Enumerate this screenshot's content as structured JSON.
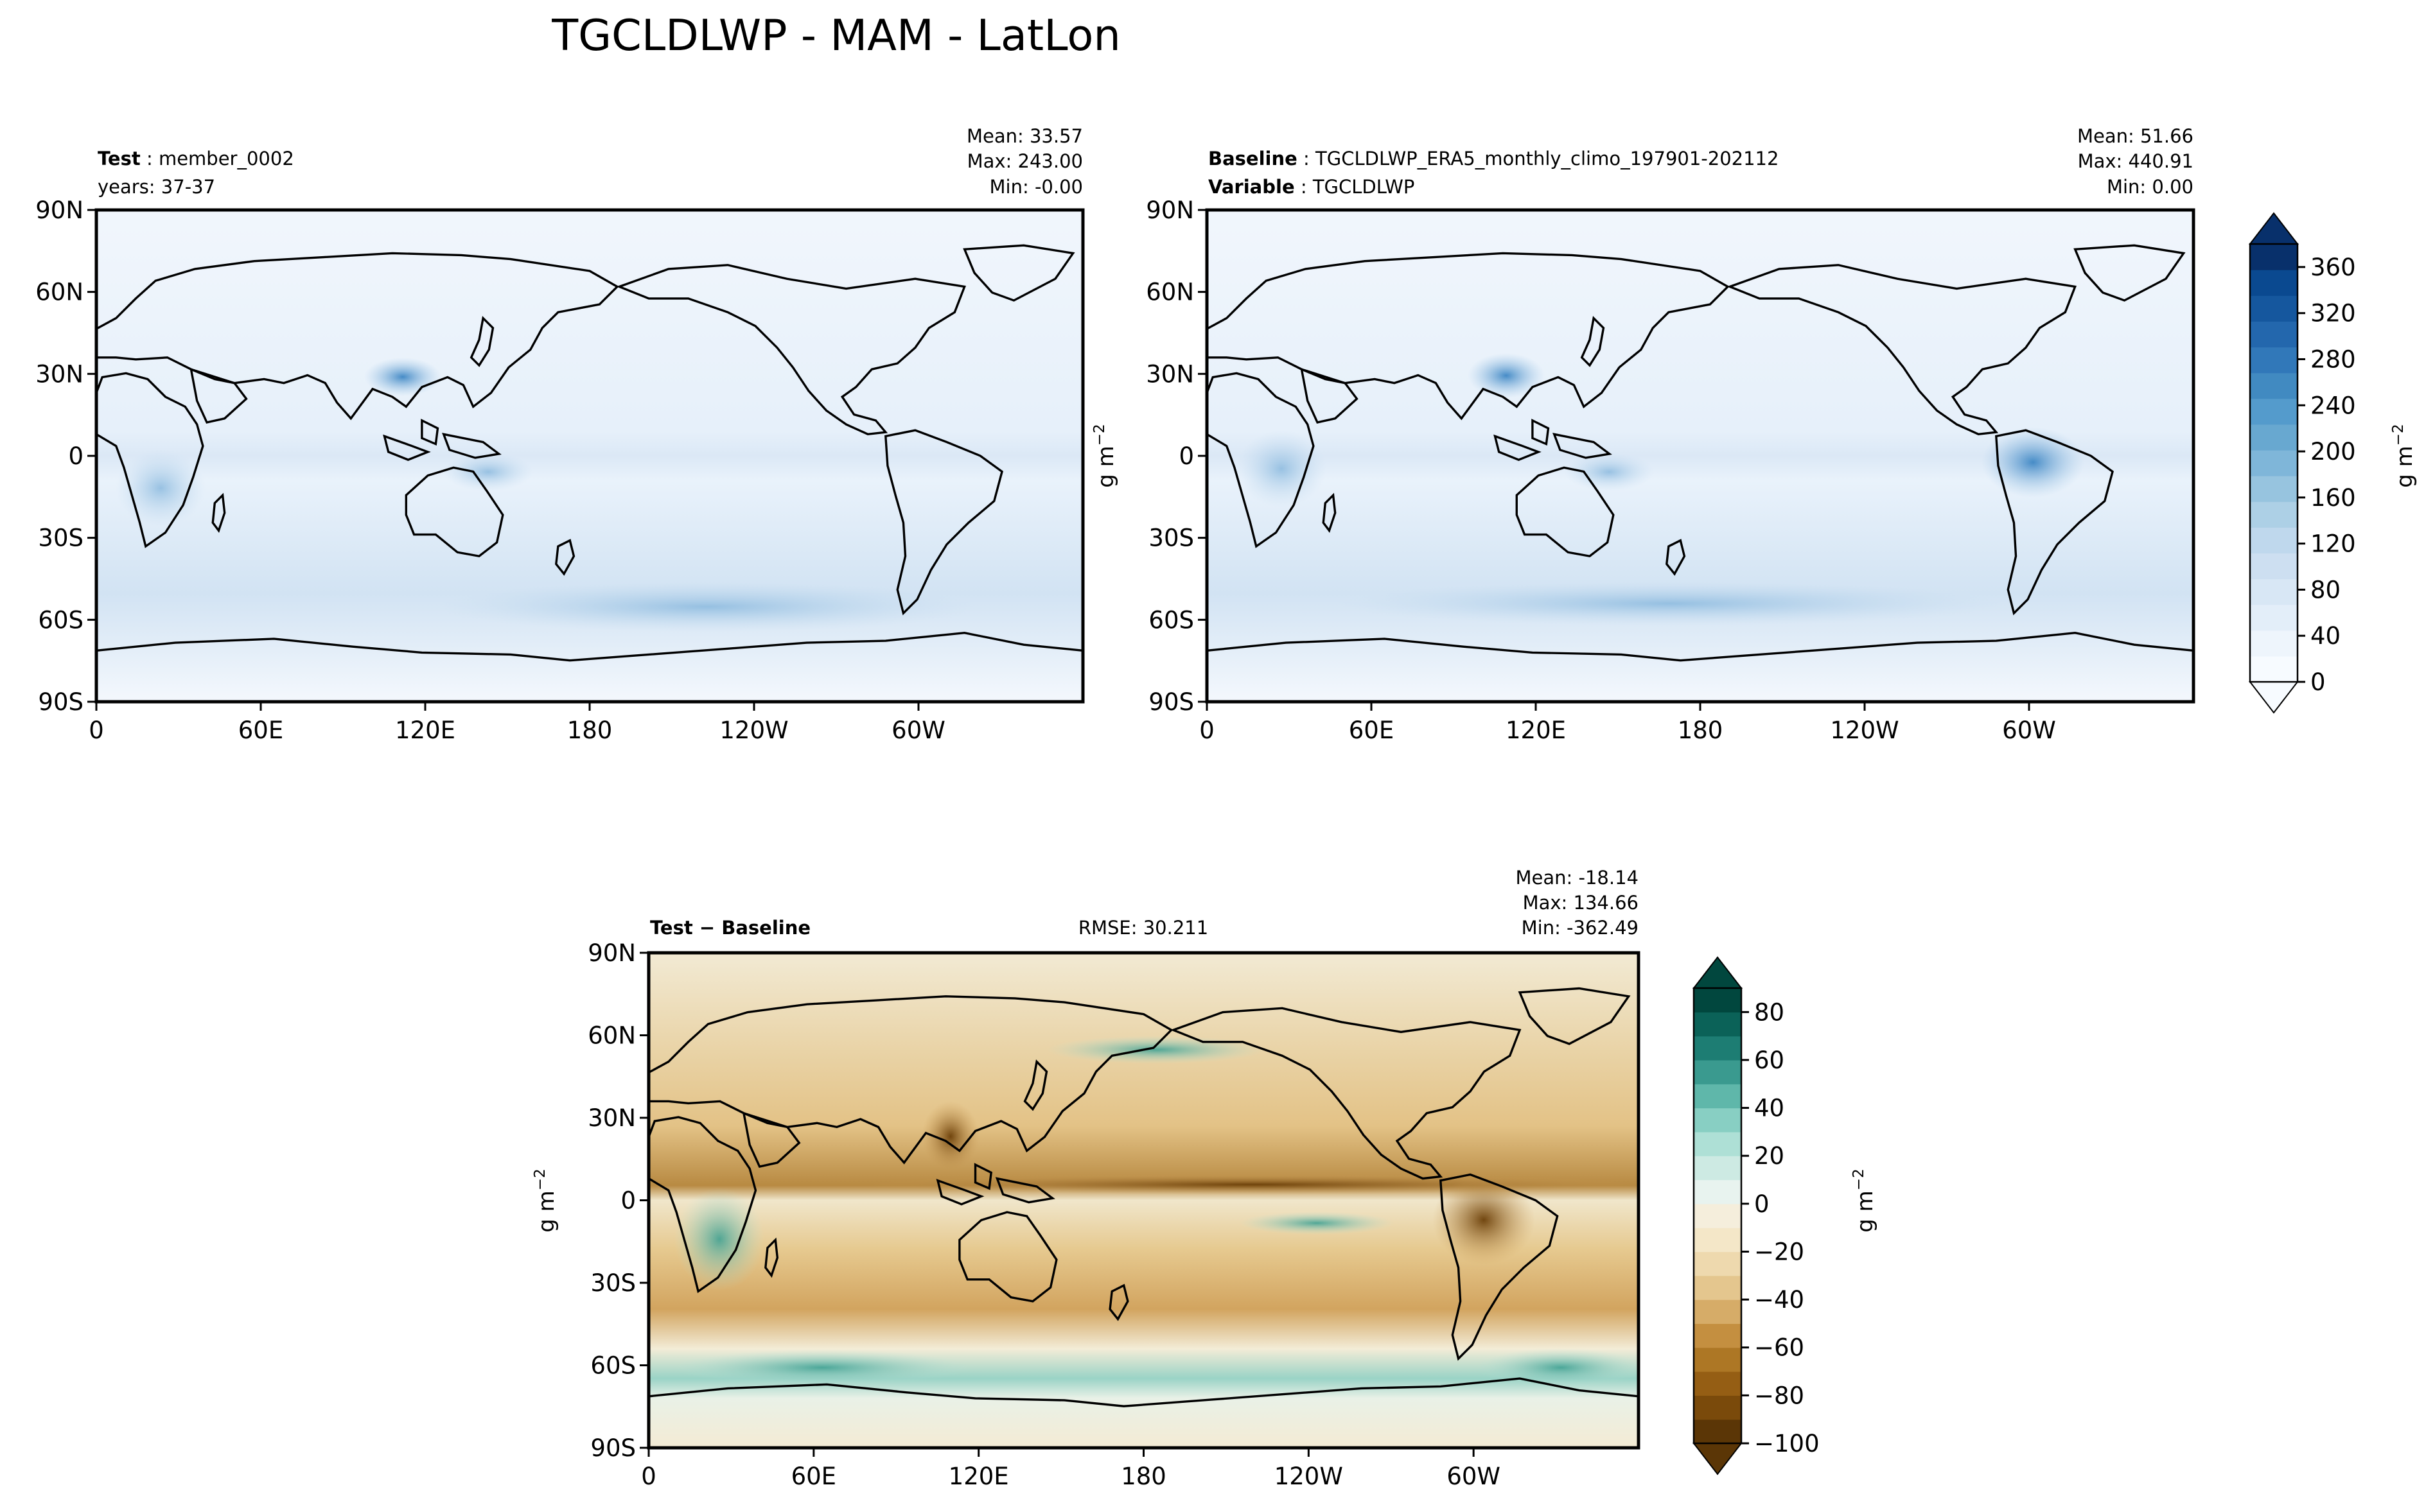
{
  "figure": {
    "title": "TGCLDLWP - MAM - LatLon"
  },
  "chart_data": [
    {
      "type": "heatmap",
      "panel": "test",
      "label_bold": "Test",
      "label_sep": " : ",
      "label_value": "member_0002",
      "label2_text": "years: 37-37",
      "stats": [
        "Mean: 33.57",
        "Max: 243.00",
        "Min: -0.00"
      ],
      "lat_ticks": [
        "90N",
        "60N",
        "30N",
        "0",
        "30S",
        "60S",
        "90S"
      ],
      "lon_ticks": [
        "0",
        "60E",
        "120E",
        "180",
        "120W",
        "60W"
      ],
      "colormap": "Blues"
    },
    {
      "type": "heatmap",
      "panel": "baseline",
      "label_bold": "Baseline",
      "label_sep": " : ",
      "label_value": "TGCLDLWP_ERA5_monthly_climo_197901-202112",
      "label2_bold": "Variable",
      "label2_sep": " : ",
      "label2_value": "TGCLDLWP",
      "stats": [
        "Mean: 51.66",
        "Max: 440.91",
        "Min:  0.00"
      ],
      "lat_ticks": [
        "90N",
        "60N",
        "30N",
        "0",
        "30S",
        "60S",
        "90S"
      ],
      "lon_ticks": [
        "0",
        "60E",
        "120E",
        "180",
        "120W",
        "60W"
      ],
      "colormap": "Blues"
    },
    {
      "type": "heatmap",
      "panel": "difference",
      "label_bold": "Test − Baseline",
      "rmse_text": "RMSE: 30.211",
      "stats": [
        "Mean: -18.14",
        "Max: 134.66",
        "Min: -362.49"
      ],
      "lat_ticks": [
        "90N",
        "60N",
        "30N",
        "0",
        "30S",
        "60S",
        "90S"
      ],
      "lon_ticks": [
        "0",
        "60E",
        "120E",
        "180",
        "120W",
        "60W"
      ],
      "colormap": "BrBG"
    }
  ],
  "colorbars": {
    "main": {
      "unit": "g m",
      "unit_sup": "−2",
      "ticks": [
        "0",
        "40",
        "80",
        "120",
        "160",
        "200",
        "240",
        "280",
        "320",
        "360"
      ],
      "tick_values": [
        0,
        40,
        80,
        120,
        160,
        200,
        240,
        280,
        320,
        360
      ],
      "range": [
        0,
        380
      ],
      "colors": [
        "#f7fbff",
        "#eef5fc",
        "#e3eef9",
        "#d8e7f5",
        "#cddff1",
        "#bfd8ed",
        "#add0e6",
        "#97c4df",
        "#7fb6d9",
        "#68a8d0",
        "#549bcc",
        "#418ac1",
        "#3178b9",
        "#2367ad",
        "#15579e",
        "#0a4990",
        "#08306b"
      ]
    },
    "diff": {
      "unit": "g m",
      "unit_sup": "−2",
      "ticks": [
        "80",
        "60",
        "40",
        "20",
        "0",
        "−20",
        "−40",
        "−60",
        "−80",
        "−100"
      ],
      "tick_values": [
        80,
        60,
        40,
        20,
        0,
        -20,
        -40,
        -60,
        -80,
        -100
      ],
      "range": [
        -100,
        90
      ],
      "colors": [
        "#5b3606",
        "#7a4a0b",
        "#955e14",
        "#ad7725",
        "#c48f40",
        "#d6ac68",
        "#e4c68e",
        "#eed9ae",
        "#f4e7c8",
        "#f5eedc",
        "#e8f3ef",
        "#cdeae3",
        "#aee0d6",
        "#88cfc3",
        "#5fb7aa",
        "#3a9a8f",
        "#1d7d73",
        "#0b6258",
        "#01473e"
      ]
    }
  },
  "axis_label": {
    "diff_panel_unit": "g m",
    "diff_panel_unit_sup": "−2"
  }
}
